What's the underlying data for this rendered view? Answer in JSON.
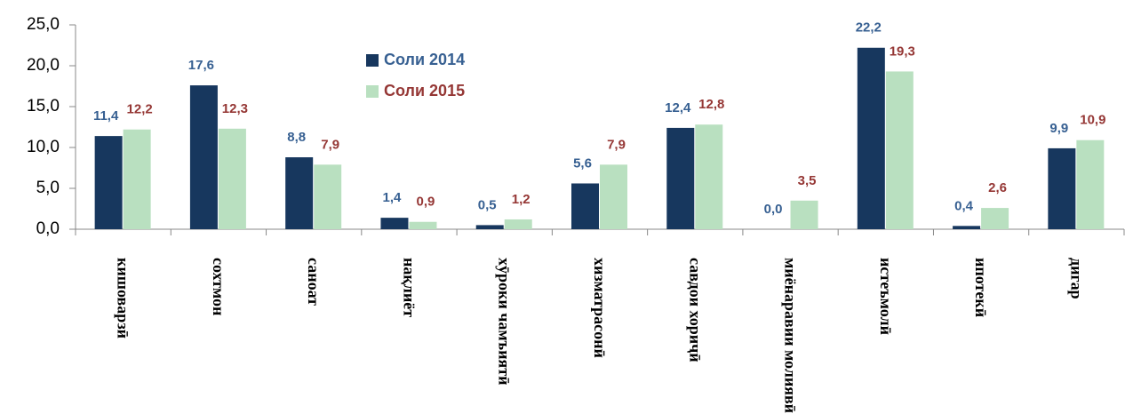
{
  "chart_data": {
    "type": "bar",
    "categories": [
      "кишоварзӣ",
      "сохтмон",
      "саноат",
      "нақлиёт",
      "хӯроки чамъиятӣ",
      "хизматрасонӣ",
      "савдои хориҷӣ",
      "миёнаравии молиявӣ",
      "истеъмолӣ",
      "ипотекӣ",
      "дигар"
    ],
    "series": [
      {
        "name": "Соли 2014",
        "color": "#17375e",
        "label_color": "#376092",
        "values": [
          11.4,
          17.6,
          8.8,
          1.4,
          0.5,
          5.6,
          12.4,
          0.0,
          22.2,
          0.4,
          9.9
        ],
        "value_labels": [
          "11,4",
          "17,6",
          "8,8",
          "1,4",
          "0,5",
          "5,6",
          "12,4",
          "0,0",
          "22,2",
          "0,4",
          "9,9"
        ]
      },
      {
        "name": "Соли 2015",
        "color": "#b9e0c0",
        "label_color": "#953735",
        "values": [
          12.2,
          12.3,
          7.9,
          0.9,
          1.2,
          7.9,
          12.8,
          3.5,
          19.3,
          2.6,
          10.9
        ],
        "value_labels": [
          "12,2",
          "12,3",
          "7,9",
          "0,9",
          "1,2",
          "7,9",
          "12,8",
          "3,5",
          "19,3",
          "2,6",
          "10,9"
        ]
      }
    ],
    "ylim": [
      0,
      25
    ],
    "yticks": [
      {
        "value": 0,
        "label": "0,0"
      },
      {
        "value": 5,
        "label": "5,0"
      },
      {
        "value": 10,
        "label": "10,0"
      },
      {
        "value": 15,
        "label": "15,0"
      },
      {
        "value": 20,
        "label": "20,0"
      },
      {
        "value": 25,
        "label": "25,0"
      }
    ],
    "grid": false,
    "legend": "upper left"
  }
}
